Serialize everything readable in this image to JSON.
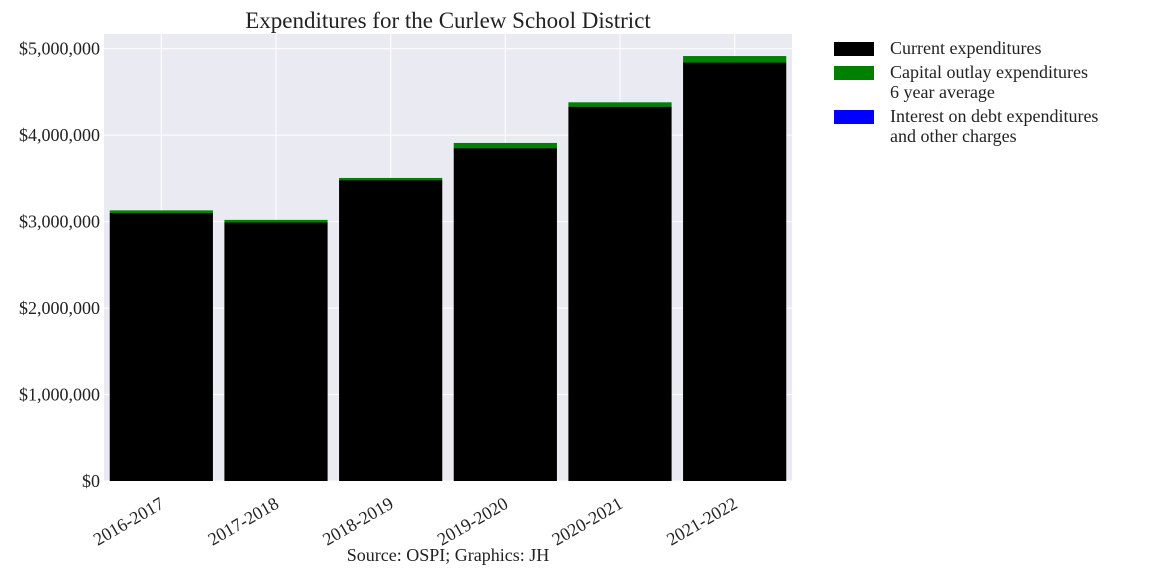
{
  "chart_data": {
    "type": "bar",
    "stacked": true,
    "title": "Expenditures for the Curlew School District",
    "source": "Source: OSPI; Graphics: JH",
    "categories": [
      "2016-2017",
      "2017-2018",
      "2018-2019",
      "2019-2020",
      "2020-2021",
      "2021-2022"
    ],
    "series": [
      {
        "name": "Current expenditures",
        "color": "#000000",
        "values": [
          3100000,
          2990000,
          3480000,
          3850000,
          4330000,
          4840000
        ]
      },
      {
        "name": "Capital outlay expenditures\n6 year average",
        "color": "#008000",
        "values": [
          30000,
          30000,
          25000,
          60000,
          50000,
          75000
        ]
      },
      {
        "name": "Interest on debt expenditures\nand other charges",
        "color": "#0000ff",
        "values": [
          0,
          0,
          0,
          0,
          0,
          0
        ]
      }
    ],
    "ylim": [
      0,
      5170000
    ],
    "yticks": [
      0,
      1000000,
      2000000,
      3000000,
      4000000,
      5000000
    ],
    "ytick_labels": [
      "$0",
      "$1,000,000",
      "$2,000,000",
      "$3,000,000",
      "$4,000,000",
      "$5,000,000"
    ],
    "xlabel": "",
    "ylabel": "",
    "grid": true,
    "legend_position": "outside-right",
    "background_color": "#eaeaf2",
    "grid_color": "#ffffff"
  }
}
